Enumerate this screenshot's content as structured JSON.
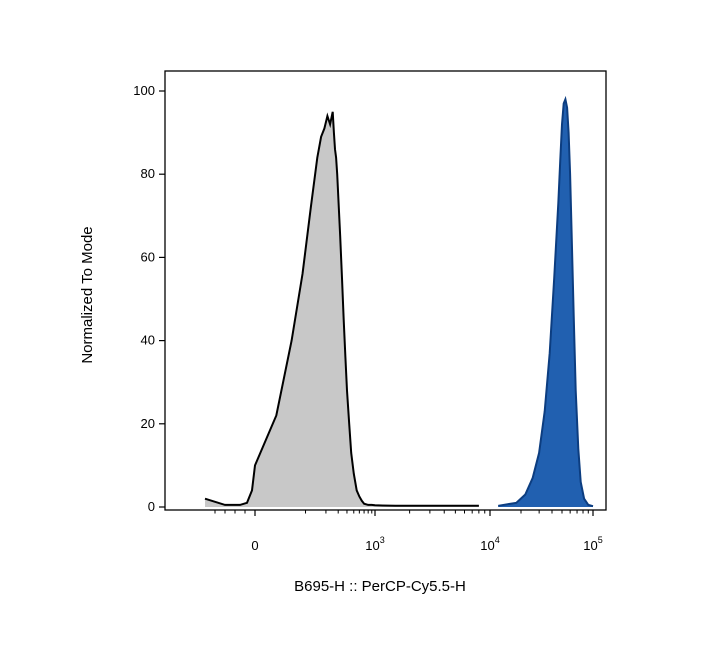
{
  "chart_data": {
    "type": "area",
    "xlabel": "B695-H :: PerCP-Cy5.5-H",
    "ylabel": "Normalized To Mode",
    "xscale": "biexponential",
    "ylim": [
      0,
      100
    ],
    "yticks": [
      "0",
      "20",
      "40",
      "60",
      "80",
      "100"
    ],
    "xticks": [
      {
        "value": 0,
        "base": "0",
        "exp": ""
      },
      {
        "value": 1000,
        "base": "10",
        "exp": "3"
      },
      {
        "value": 10000,
        "base": "10",
        "exp": "4"
      },
      {
        "value": 100000,
        "base": "10",
        "exp": "5"
      }
    ],
    "grid": false,
    "series": [
      {
        "fill": "#c8c8c8",
        "stroke": "#000000",
        "x": [
          -500,
          -300,
          -150,
          -80,
          -30,
          0,
          30,
          60,
          90,
          120,
          150,
          170,
          190,
          210,
          230,
          250,
          260,
          270,
          280,
          290,
          300,
          320,
          340,
          360,
          380,
          400,
          430,
          460,
          500,
          550,
          600,
          650,
          700,
          800,
          900,
          1000,
          1500,
          2000,
          3000,
          5000,
          8000
        ],
        "values": [
          2,
          0.5,
          0.5,
          1,
          4,
          10,
          22,
          40,
          56,
          72,
          84,
          89,
          91,
          94,
          92,
          95,
          90,
          86,
          84,
          80,
          75,
          65,
          55,
          45,
          36,
          28,
          20,
          13,
          8,
          4,
          2.5,
          1.5,
          0.8,
          0.5,
          0.5,
          0.4,
          0.3,
          0.3,
          0.3,
          0.3,
          0.3
        ]
      },
      {
        "fill": "#2160b0",
        "stroke": "#0c3d80",
        "x": [
          12000,
          18000,
          22000,
          26000,
          30000,
          34000,
          38000,
          42000,
          46000,
          48000,
          50000,
          52000,
          54000,
          56000,
          58000,
          60000,
          62000,
          65000,
          68000,
          72000,
          76000,
          82000,
          90000,
          100000
        ],
        "values": [
          0.3,
          1,
          3,
          7,
          13,
          23,
          37,
          55,
          73,
          83,
          92,
          97,
          98,
          96,
          90,
          80,
          66,
          46,
          28,
          14,
          6,
          2,
          0.5,
          0.2
        ]
      }
    ]
  }
}
